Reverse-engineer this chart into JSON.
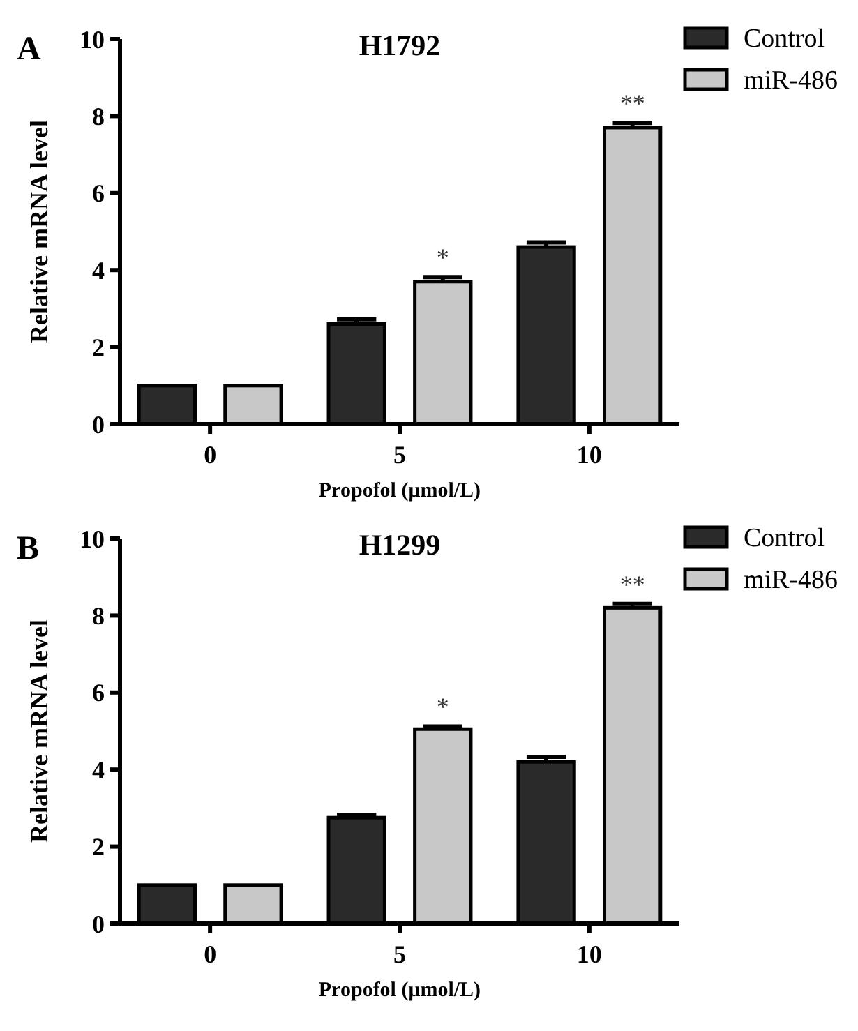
{
  "chart_data": [
    {
      "type": "bar",
      "title": "H1792",
      "xlabel": "Propofol (μmol/L)",
      "ylabel": "Relative mRNA level",
      "categories": [
        "0",
        "5",
        "10"
      ],
      "ylim": [
        0,
        10
      ],
      "yticks": [
        0,
        2,
        4,
        6,
        8,
        10
      ],
      "legend": "top right",
      "grid": false,
      "series": [
        {
          "name": "Control",
          "color": "#2a2a2a",
          "values": [
            1,
            2.6,
            4.6
          ],
          "errors": [
            null,
            0.12,
            0.12
          ]
        },
        {
          "name": "miR-486",
          "color": "#c8c8c8",
          "values": [
            1,
            3.7,
            7.7
          ],
          "errors": [
            null,
            0.12,
            0.12
          ]
        }
      ],
      "annotations": [
        "A",
        "*",
        "**"
      ]
    },
    {
      "type": "bar",
      "title": "H1299",
      "xlabel": "Propofol (μmol/L)",
      "ylabel": "Relative mRNA level",
      "categories": [
        "0",
        "5",
        "10"
      ],
      "ylim": [
        0,
        10
      ],
      "yticks": [
        0,
        2,
        4,
        6,
        8,
        10
      ],
      "legend": "top right",
      "grid": false,
      "series": [
        {
          "name": "Control",
          "color": "#2a2a2a",
          "values": [
            1,
            2.75,
            4.2
          ],
          "errors": [
            null,
            0.07,
            0.13
          ]
        },
        {
          "name": "miR-486",
          "color": "#c8c8c8",
          "values": [
            1,
            5.05,
            8.2
          ],
          "errors": [
            null,
            0.07,
            0.1
          ]
        }
      ],
      "annotations": [
        "B",
        "*",
        "**"
      ]
    }
  ]
}
